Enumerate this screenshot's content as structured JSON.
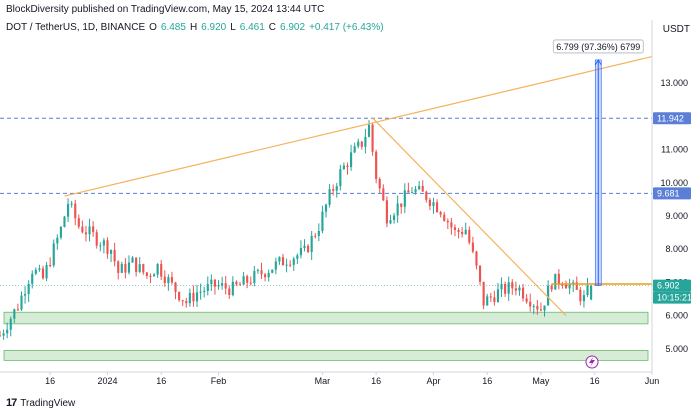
{
  "header": {
    "published": "BlockDiversity published on TradingView.com, May 15, 2024 13:44 UTC",
    "symbol": "DOT / TetherUS, 1D, BINANCE",
    "o_label": "O",
    "o": "6.485",
    "h_label": "H",
    "h": "6.920",
    "l_label": "L",
    "l": "6.461",
    "c_label": "C",
    "c": "6.902",
    "change": "+0.417 (+6.43%)",
    "currency": "USDT"
  },
  "measure_label": "6.799 (97.36%) 6799",
  "price_tags": {
    "current": "6.902",
    "countdown": "10:15:21",
    "level_high": "11.942",
    "level_mid": "9.681"
  },
  "footer": {
    "logo": "17",
    "brand": "TradingView"
  },
  "colors": {
    "up": "#26a69a",
    "down": "#ef5350",
    "trendline": "#f5b25c",
    "level_line": "#5b7fd6",
    "support_zone": "#c8e6c9",
    "measure": "#2962ff"
  },
  "chart_data": {
    "type": "candlestick",
    "ylim": [
      4.3,
      14.3
    ],
    "xlim": [
      "2023-12-02",
      "2024-06-01"
    ],
    "y_ticks": [
      "13.000",
      "12.000",
      "11.000",
      "10.000",
      "9.000",
      "8.000",
      "7.000",
      "6.000",
      "5.000"
    ],
    "x_ticks": [
      {
        "label": "16",
        "date": "2023-12-16"
      },
      {
        "label": "2024",
        "date": "2024-01-01"
      },
      {
        "label": "16",
        "date": "2024-01-16"
      },
      {
        "label": "Feb",
        "date": "2024-02-01"
      },
      {
        "label": "Mar",
        "date": "2024-03-01"
      },
      {
        "label": "16",
        "date": "2024-03-16"
      },
      {
        "label": "Apr",
        "date": "2024-04-01"
      },
      {
        "label": "16",
        "date": "2024-04-16"
      },
      {
        "label": "May",
        "date": "2024-05-01"
      },
      {
        "label": "16",
        "date": "2024-05-16"
      },
      {
        "label": "Jun",
        "date": "2024-06-01"
      }
    ],
    "horizontal_levels": [
      11.942,
      9.681
    ],
    "support_zones": [
      [
        5.75,
        6.1
      ],
      [
        4.65,
        4.95
      ]
    ],
    "trendlines": [
      {
        "from": {
          "date": "2023-12-20",
          "price": 9.6
        },
        "to": {
          "date": "2024-06-01",
          "price": 13.8
        }
      },
      {
        "from": {
          "date": "2024-03-15",
          "price": 11.95
        },
        "to": {
          "date": "2024-05-08",
          "price": 6.0
        }
      }
    ],
    "resistance_line": {
      "from": "2024-05-04",
      "to": "2024-06-01",
      "price": 6.95
    },
    "measure": {
      "date": "2024-05-17",
      "from": 6.9,
      "to": 13.7
    },
    "close_points": [
      {
        "date": "2023-12-02",
        "close": 5.4
      },
      {
        "date": "2023-12-07",
        "close": 6.3
      },
      {
        "date": "2023-12-11",
        "close": 7.4
      },
      {
        "date": "2023-12-14",
        "close": 7.1
      },
      {
        "date": "2023-12-19",
        "close": 8.6
      },
      {
        "date": "2023-12-21",
        "close": 9.4
      },
      {
        "date": "2023-12-24",
        "close": 8.7
      },
      {
        "date": "2023-12-28",
        "close": 8.4
      },
      {
        "date": "2024-01-02",
        "close": 8.0
      },
      {
        "date": "2024-01-04",
        "close": 7.3
      },
      {
        "date": "2024-01-08",
        "close": 7.6
      },
      {
        "date": "2024-01-12",
        "close": 7.2
      },
      {
        "date": "2024-01-15",
        "close": 7.5
      },
      {
        "date": "2024-01-19",
        "close": 6.9
      },
      {
        "date": "2024-01-23",
        "close": 6.4
      },
      {
        "date": "2024-01-26",
        "close": 6.7
      },
      {
        "date": "2024-01-31",
        "close": 6.9
      },
      {
        "date": "2024-02-05",
        "close": 6.8
      },
      {
        "date": "2024-02-10",
        "close": 7.1
      },
      {
        "date": "2024-02-15",
        "close": 7.4
      },
      {
        "date": "2024-02-20",
        "close": 7.7
      },
      {
        "date": "2024-02-25",
        "close": 7.9
      },
      {
        "date": "2024-02-29",
        "close": 8.7
      },
      {
        "date": "2024-03-03",
        "close": 9.6
      },
      {
        "date": "2024-03-06",
        "close": 10.3
      },
      {
        "date": "2024-03-09",
        "close": 10.8
      },
      {
        "date": "2024-03-12",
        "close": 11.2
      },
      {
        "date": "2024-03-14",
        "close": 11.7
      },
      {
        "date": "2024-03-16",
        "close": 10.2
      },
      {
        "date": "2024-03-19",
        "close": 9.0
      },
      {
        "date": "2024-03-22",
        "close": 9.3
      },
      {
        "date": "2024-03-26",
        "close": 9.8
      },
      {
        "date": "2024-03-30",
        "close": 9.6
      },
      {
        "date": "2024-04-03",
        "close": 9.2
      },
      {
        "date": "2024-04-07",
        "close": 8.5
      },
      {
        "date": "2024-04-10",
        "close": 8.6
      },
      {
        "date": "2024-04-13",
        "close": 7.4
      },
      {
        "date": "2024-04-15",
        "close": 6.4
      },
      {
        "date": "2024-04-19",
        "close": 6.7
      },
      {
        "date": "2024-04-24",
        "close": 6.9
      },
      {
        "date": "2024-04-28",
        "close": 6.5
      },
      {
        "date": "2024-05-01",
        "close": 6.2
      },
      {
        "date": "2024-05-04",
        "close": 7.0
      },
      {
        "date": "2024-05-07",
        "close": 7.1
      },
      {
        "date": "2024-05-10",
        "close": 6.8
      },
      {
        "date": "2024-05-13",
        "close": 6.5
      },
      {
        "date": "2024-05-15",
        "close": 6.9
      }
    ]
  }
}
